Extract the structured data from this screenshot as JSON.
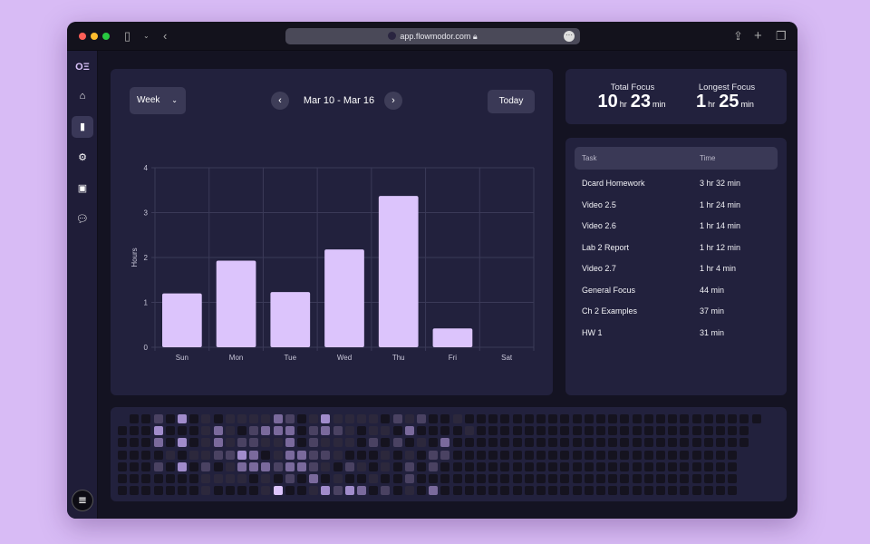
{
  "browser": {
    "url": "app.flowmodor.com"
  },
  "sidebar": {
    "items": [
      "home",
      "stats",
      "settings",
      "billing",
      "feedback"
    ]
  },
  "chart_controls": {
    "period": "Week",
    "range": "Mar 10 - Mar 16",
    "today": "Today"
  },
  "focus": {
    "total_label": "Total Focus",
    "total_hr": "10",
    "total_min": "23",
    "longest_label": "Longest Focus",
    "longest_hr": "1",
    "longest_min": "25",
    "hr_unit": "hr",
    "min_unit": "min"
  },
  "tasks": {
    "headers": [
      "Task",
      "Time"
    ],
    "rows": [
      {
        "task": "Dcard Homework",
        "time": "3 hr 32 min"
      },
      {
        "task": "Video 2.5",
        "time": "1 hr 24 min"
      },
      {
        "task": "Video 2.6",
        "time": "1 hr 14 min"
      },
      {
        "task": "Lab 2 Report",
        "time": "1 hr 12 min"
      },
      {
        "task": "Video 2.7",
        "time": "1 hr 4 min"
      },
      {
        "task": "General Focus",
        "time": "44 min"
      },
      {
        "task": "Ch 2 Examples",
        "time": "37 min"
      },
      {
        "task": "HW 1",
        "time": "31 min"
      }
    ]
  },
  "chart_data": {
    "type": "bar",
    "categories": [
      "Sun",
      "Mon",
      "Tue",
      "Wed",
      "Thu",
      "Fri",
      "Sat"
    ],
    "values": [
      1.2,
      1.93,
      1.23,
      2.18,
      3.37,
      0.42,
      0
    ],
    "ylabel": "Hours",
    "ylim": [
      0,
      4
    ],
    "yticks": [
      0,
      1,
      2,
      3,
      4
    ],
    "bar_color": "#dcc4fc",
    "grid": true
  },
  "heatmap": {
    "colors": [
      "#15131f",
      "#2c283c",
      "#4a4262",
      "#7a6a9c",
      "#a18ccc",
      "#dcc4fc"
    ],
    "rows": [
      "x00204010111132014111102120010000000000000000000000000",
      "00040001310233302321011030000100000000000000000000000",
      "00030401312211302111020201030000000000000000000000000",
      "0000101122430133221000101022000000000000000000000000",
      "0002040201333233210210102020000000000000000000000000",
      "0000000111101020301001002000000000000000000000000000",
      "0000000100001500142430201030000000000000000000000000"
    ]
  }
}
